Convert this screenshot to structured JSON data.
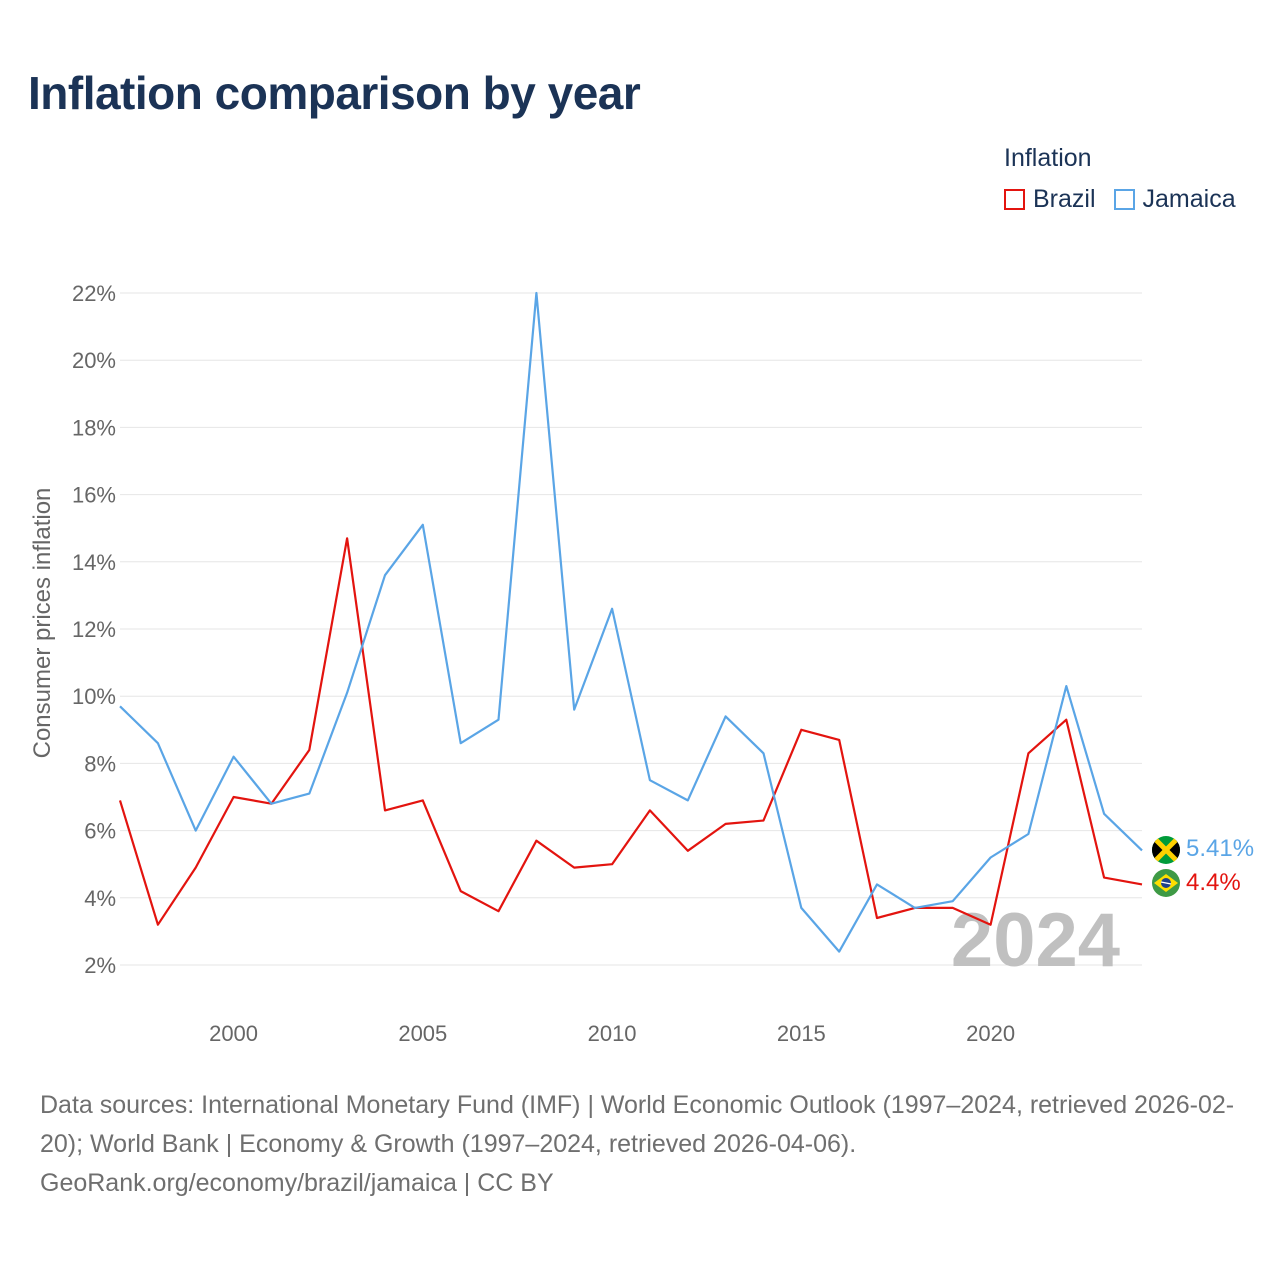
{
  "title": "Inflation comparison by year",
  "legend": {
    "title": "Inflation",
    "items": [
      {
        "label": "Brazil",
        "color": "#e3140f"
      },
      {
        "label": "Jamaica",
        "color": "#5aa5e6"
      }
    ]
  },
  "chart_data": {
    "type": "line",
    "title": "Inflation comparison by year",
    "xlabel": "",
    "ylabel": "Consumer prices inflation",
    "x": [
      1997,
      1998,
      1999,
      2000,
      2001,
      2002,
      2003,
      2004,
      2005,
      2006,
      2007,
      2008,
      2009,
      2010,
      2011,
      2012,
      2013,
      2014,
      2015,
      2016,
      2017,
      2018,
      2019,
      2020,
      2021,
      2022,
      2023,
      2024
    ],
    "xlim": [
      1997,
      2024
    ],
    "ylim": [
      2,
      22
    ],
    "x_ticks": [
      2000,
      2005,
      2010,
      2015,
      2020
    ],
    "x_tick_labels": [
      "2000",
      "2005",
      "2010",
      "2015",
      "2020"
    ],
    "y_ticks": [
      2,
      4,
      6,
      8,
      10,
      12,
      14,
      16,
      18,
      20,
      22
    ],
    "y_tick_labels": [
      "2%",
      "4%",
      "6%",
      "8%",
      "10%",
      "12%",
      "14%",
      "16%",
      "18%",
      "20%",
      "22%"
    ],
    "grid": true,
    "legend_position": "top-right",
    "series": [
      {
        "name": "Brazil",
        "color": "#e3140f",
        "values": [
          6.9,
          3.2,
          4.9,
          7.0,
          6.8,
          8.4,
          14.7,
          6.6,
          6.9,
          4.2,
          3.6,
          5.7,
          4.9,
          5.0,
          6.6,
          5.4,
          6.2,
          6.3,
          9.0,
          8.7,
          3.4,
          3.7,
          3.7,
          3.2,
          8.3,
          9.3,
          4.6,
          4.4
        ],
        "end_label": "4.4%"
      },
      {
        "name": "Jamaica",
        "color": "#5aa5e6",
        "values": [
          9.7,
          8.6,
          6.0,
          8.2,
          6.8,
          7.1,
          10.1,
          13.6,
          15.1,
          8.6,
          9.3,
          22.0,
          9.6,
          12.6,
          7.5,
          6.9,
          9.4,
          8.3,
          3.7,
          2.4,
          4.4,
          3.7,
          3.9,
          5.2,
          5.9,
          10.3,
          6.5,
          5.41
        ],
        "end_label": "5.41%"
      }
    ],
    "watermark_year": "2024"
  },
  "source": {
    "line1": "Data sources: International Monetary Fund (IMF) | World Economic Outlook (1997–2024, retrieved 2026-02-20); World Bank | Economy & Growth (1997–2024, retrieved 2026-04-06).",
    "line2": "GeoRank.org/economy/brazil/jamaica | CC BY"
  },
  "icons": {
    "brazil": "brazil-flag-icon",
    "jamaica": "jamaica-flag-icon"
  }
}
